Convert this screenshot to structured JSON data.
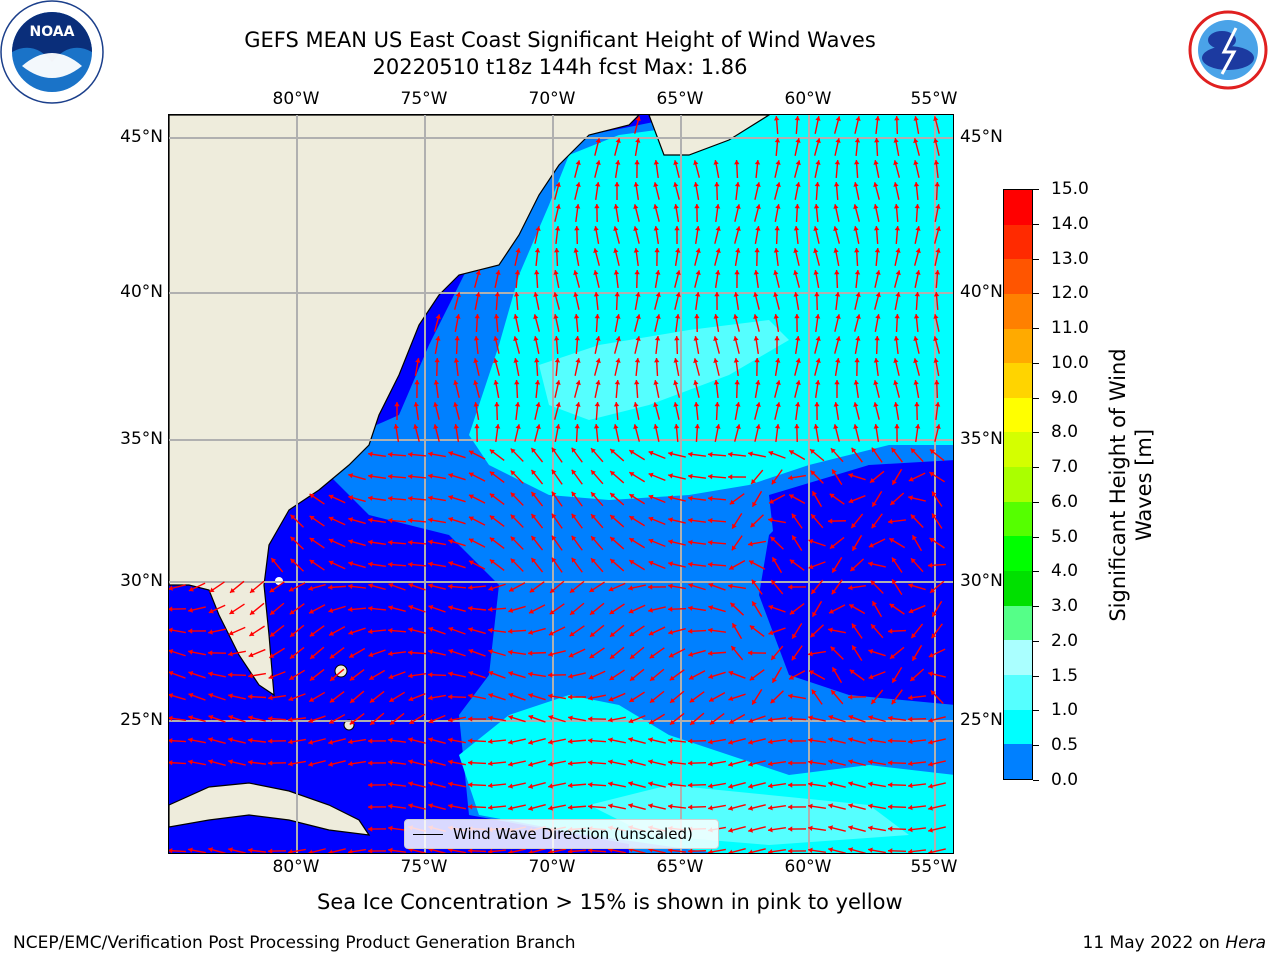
{
  "header": {
    "title_line1": "GEFS MEAN US East Coast Significant Height of Wind Waves",
    "title_line2": "20220510 t18z 144h fcst   Max: 1.86"
  },
  "axes": {
    "lon_labels": [
      "80°W",
      "75°W",
      "70°W",
      "65°W",
      "60°W",
      "55°W"
    ],
    "lat_labels": [
      "45°N",
      "40°N",
      "35°N",
      "30°N",
      "25°N"
    ]
  },
  "colorbar": {
    "label_line1": "Significant Height of Wind",
    "label_line2": "Waves [m]",
    "ticks": [
      "15.0",
      "14.0",
      "13.0",
      "12.0",
      "11.0",
      "10.0",
      "9.0",
      "8.0",
      "7.0",
      "6.0",
      "5.0",
      "4.0",
      "3.0",
      "2.0",
      "1.5",
      "1.0",
      "0.5",
      "0.0"
    ],
    "colors": [
      "#ff0000",
      "#ff2a00",
      "#ff5500",
      "#ff8000",
      "#ffaa00",
      "#ffd400",
      "#ffff00",
      "#d4ff00",
      "#aaff00",
      "#55ff00",
      "#00ff00",
      "#00e000",
      "#55ff88",
      "#aaffff",
      "#55ffff",
      "#00ffff",
      "#0080ff",
      "#0000ff"
    ]
  },
  "legend": {
    "label": "Wind Wave Direction (unscaled)"
  },
  "note": "Sea Ice Concentration > 15% is shown in pink to yellow",
  "footer": {
    "left": "NCEP/EMC/Verification Post Processing Product Generation Branch",
    "right_date": "11 May 2022 on ",
    "right_host": "Hera"
  },
  "colors": {
    "land": "#eeecdc",
    "grid": "#b0b0b0",
    "arrow": "#ff0000",
    "deep": "#0000ff",
    "mid": "#0080ff",
    "light": "#00ffff",
    "pale": "#55ffff"
  }
}
